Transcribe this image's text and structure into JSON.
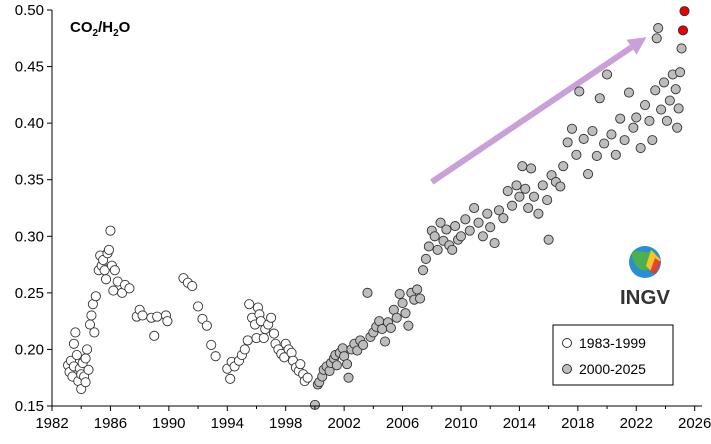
{
  "chart_data": {
    "type": "scatter",
    "title": "CO2/H2O",
    "title_parts": {
      "a": "CO",
      "a_sub": "2",
      "b": "/H",
      "b_sub": "2",
      "c": "O"
    },
    "xlabel": "",
    "ylabel": "",
    "xlim": [
      1982,
      2026.5
    ],
    "ylim": [
      0.15,
      0.5
    ],
    "x_ticks": [
      1982,
      1986,
      1990,
      1994,
      1998,
      2002,
      2006,
      2010,
      2014,
      2018,
      2022,
      2026
    ],
    "y_ticks": [
      0.15,
      0.2,
      0.25,
      0.3,
      0.35,
      0.4,
      0.45,
      0.5
    ],
    "x_tick_labels": [
      "1982",
      "1986",
      "1990",
      "1994",
      "1998",
      "2002",
      "2006",
      "2010",
      "2014",
      "2018",
      "2022",
      "2026"
    ],
    "y_tick_labels": [
      "0.15",
      "0.20",
      "0.25",
      "0.30",
      "0.35",
      "0.40",
      "0.45",
      "0.50"
    ],
    "grid": false,
    "legend_position": "bottom-right",
    "logo_text": "INGV",
    "colors": {
      "series_1983_1999": "#ffffff",
      "series_2000_2025": "#bdbdbd",
      "highlight": "#e60000",
      "arrow": "#c9a0d8",
      "marker_edge": "#333333"
    },
    "trend_arrow": {
      "from": [
        2008.0,
        0.348
      ],
      "to": [
        2022.7,
        0.476
      ]
    },
    "series": [
      {
        "name": "1983-1999",
        "marker": "open-circle",
        "points": [
          [
            1983.1,
            0.186
          ],
          [
            1983.2,
            0.18
          ],
          [
            1983.3,
            0.19
          ],
          [
            1983.4,
            0.176
          ],
          [
            1983.5,
            0.185
          ],
          [
            1983.5,
            0.205
          ],
          [
            1983.6,
            0.215
          ],
          [
            1983.7,
            0.195
          ],
          [
            1983.8,
            0.172
          ],
          [
            1983.9,
            0.183
          ],
          [
            1984.0,
            0.178
          ],
          [
            1984.0,
            0.165
          ],
          [
            1984.1,
            0.188
          ],
          [
            1984.2,
            0.176
          ],
          [
            1984.3,
            0.192
          ],
          [
            1984.3,
            0.171
          ],
          [
            1984.4,
            0.2
          ],
          [
            1984.5,
            0.182
          ],
          [
            1984.6,
            0.222
          ],
          [
            1984.7,
            0.23
          ],
          [
            1984.8,
            0.24
          ],
          [
            1984.9,
            0.215
          ],
          [
            1985.0,
            0.247
          ],
          [
            1985.2,
            0.27
          ],
          [
            1985.3,
            0.283
          ],
          [
            1985.4,
            0.274
          ],
          [
            1985.5,
            0.279
          ],
          [
            1985.6,
            0.27
          ],
          [
            1985.7,
            0.262
          ],
          [
            1985.8,
            0.285
          ],
          [
            1985.9,
            0.288
          ],
          [
            1986.0,
            0.305
          ],
          [
            1986.1,
            0.274
          ],
          [
            1986.2,
            0.252
          ],
          [
            1986.3,
            0.27
          ],
          [
            1986.5,
            0.26
          ],
          [
            1986.8,
            0.25
          ],
          [
            1987.0,
            0.257
          ],
          [
            1987.3,
            0.254
          ],
          [
            1987.8,
            0.229
          ],
          [
            1988.0,
            0.235
          ],
          [
            1988.2,
            0.23
          ],
          [
            1988.8,
            0.228
          ],
          [
            1989.0,
            0.212
          ],
          [
            1989.2,
            0.229
          ],
          [
            1989.8,
            0.23
          ],
          [
            1989.9,
            0.225
          ],
          [
            1991.0,
            0.263
          ],
          [
            1991.3,
            0.259
          ],
          [
            1991.6,
            0.256
          ],
          [
            1992.0,
            0.238
          ],
          [
            1992.3,
            0.227
          ],
          [
            1992.6,
            0.221
          ],
          [
            1992.9,
            0.204
          ],
          [
            1993.2,
            0.194
          ],
          [
            1994.0,
            0.183
          ],
          [
            1994.2,
            0.174
          ],
          [
            1994.3,
            0.189
          ],
          [
            1994.5,
            0.185
          ],
          [
            1994.8,
            0.19
          ],
          [
            1995.0,
            0.195
          ],
          [
            1995.2,
            0.2
          ],
          [
            1995.4,
            0.208
          ],
          [
            1995.5,
            0.24
          ],
          [
            1995.7,
            0.228
          ],
          [
            1995.9,
            0.222
          ],
          [
            1996.0,
            0.21
          ],
          [
            1996.1,
            0.237
          ],
          [
            1996.2,
            0.231
          ],
          [
            1996.3,
            0.225
          ],
          [
            1996.5,
            0.21
          ],
          [
            1996.6,
            0.218
          ],
          [
            1996.8,
            0.222
          ],
          [
            1997.0,
            0.228
          ],
          [
            1997.2,
            0.214
          ],
          [
            1997.3,
            0.205
          ],
          [
            1997.5,
            0.2
          ],
          [
            1997.7,
            0.196
          ],
          [
            1997.9,
            0.193
          ],
          [
            1998.0,
            0.205
          ],
          [
            1998.2,
            0.2
          ],
          [
            1998.4,
            0.197
          ],
          [
            1998.5,
            0.19
          ],
          [
            1998.7,
            0.184
          ],
          [
            1998.9,
            0.181
          ],
          [
            1999.0,
            0.187
          ],
          [
            1999.2,
            0.178
          ],
          [
            1999.3,
            0.172
          ],
          [
            1999.5,
            0.175
          ]
        ]
      },
      {
        "name": "2000-2025",
        "marker": "filled-circle",
        "points": [
          [
            2000.0,
            0.151
          ],
          [
            2000.2,
            0.169
          ],
          [
            2000.3,
            0.171
          ],
          [
            2000.5,
            0.176
          ],
          [
            2000.6,
            0.182
          ],
          [
            2000.8,
            0.185
          ],
          [
            2001.0,
            0.181
          ],
          [
            2001.1,
            0.188
          ],
          [
            2001.3,
            0.192
          ],
          [
            2001.4,
            0.195
          ],
          [
            2001.5,
            0.186
          ],
          [
            2001.7,
            0.197
          ],
          [
            2001.9,
            0.201
          ],
          [
            2002.0,
            0.194
          ],
          [
            2002.2,
            0.187
          ],
          [
            2002.3,
            0.175
          ],
          [
            2002.5,
            0.2
          ],
          [
            2002.7,
            0.205
          ],
          [
            2002.9,
            0.199
          ],
          [
            2003.1,
            0.208
          ],
          [
            2003.3,
            0.204
          ],
          [
            2003.6,
            0.25
          ],
          [
            2003.8,
            0.211
          ],
          [
            2004.0,
            0.215
          ],
          [
            2004.2,
            0.22
          ],
          [
            2004.4,
            0.225
          ],
          [
            2004.6,
            0.218
          ],
          [
            2004.8,
            0.207
          ],
          [
            2005.0,
            0.224
          ],
          [
            2005.2,
            0.219
          ],
          [
            2005.4,
            0.235
          ],
          [
            2005.6,
            0.228
          ],
          [
            2005.8,
            0.249
          ],
          [
            2006.0,
            0.241
          ],
          [
            2006.2,
            0.232
          ],
          [
            2006.4,
            0.221
          ],
          [
            2006.6,
            0.25
          ],
          [
            2006.8,
            0.244
          ],
          [
            2007.0,
            0.253
          ],
          [
            2007.2,
            0.245
          ],
          [
            2007.4,
            0.27
          ],
          [
            2007.6,
            0.28
          ],
          [
            2007.8,
            0.291
          ],
          [
            2008.0,
            0.305
          ],
          [
            2008.2,
            0.3
          ],
          [
            2008.4,
            0.288
          ],
          [
            2008.6,
            0.312
          ],
          [
            2008.8,
            0.296
          ],
          [
            2009.0,
            0.306
          ],
          [
            2009.2,
            0.292
          ],
          [
            2009.4,
            0.288
          ],
          [
            2009.6,
            0.309
          ],
          [
            2009.8,
            0.297
          ],
          [
            2010.0,
            0.3
          ],
          [
            2010.3,
            0.315
          ],
          [
            2010.6,
            0.305
          ],
          [
            2010.9,
            0.325
          ],
          [
            2011.2,
            0.312
          ],
          [
            2011.5,
            0.3
          ],
          [
            2011.8,
            0.32
          ],
          [
            2012.0,
            0.308
          ],
          [
            2012.3,
            0.294
          ],
          [
            2012.6,
            0.323
          ],
          [
            2012.9,
            0.316
          ],
          [
            2013.2,
            0.34
          ],
          [
            2013.5,
            0.327
          ],
          [
            2013.8,
            0.345
          ],
          [
            2014.0,
            0.335
          ],
          [
            2014.2,
            0.362
          ],
          [
            2014.4,
            0.342
          ],
          [
            2014.6,
            0.325
          ],
          [
            2014.8,
            0.36
          ],
          [
            2015.0,
            0.335
          ],
          [
            2015.3,
            0.32
          ],
          [
            2015.6,
            0.345
          ],
          [
            2015.9,
            0.332
          ],
          [
            2016.0,
            0.297
          ],
          [
            2016.2,
            0.354
          ],
          [
            2016.5,
            0.348
          ],
          [
            2016.8,
            0.344
          ],
          [
            2017.0,
            0.362
          ],
          [
            2017.3,
            0.383
          ],
          [
            2017.6,
            0.395
          ],
          [
            2017.9,
            0.372
          ],
          [
            2018.1,
            0.428
          ],
          [
            2018.4,
            0.386
          ],
          [
            2018.7,
            0.355
          ],
          [
            2019.0,
            0.393
          ],
          [
            2019.3,
            0.371
          ],
          [
            2019.5,
            0.422
          ],
          [
            2019.8,
            0.382
          ],
          [
            2020.0,
            0.443
          ],
          [
            2020.3,
            0.39
          ],
          [
            2020.6,
            0.372
          ],
          [
            2020.9,
            0.404
          ],
          [
            2021.2,
            0.385
          ],
          [
            2021.5,
            0.427
          ],
          [
            2021.8,
            0.396
          ],
          [
            2022.0,
            0.405
          ],
          [
            2022.3,
            0.378
          ],
          [
            2022.6,
            0.416
          ],
          [
            2022.9,
            0.402
          ],
          [
            2023.1,
            0.385
          ],
          [
            2023.3,
            0.429
          ],
          [
            2023.4,
            0.475
          ],
          [
            2023.5,
            0.484
          ],
          [
            2023.7,
            0.412
          ],
          [
            2023.9,
            0.436
          ],
          [
            2024.1,
            0.402
          ],
          [
            2024.3,
            0.42
          ],
          [
            2024.5,
            0.443
          ],
          [
            2024.7,
            0.43
          ],
          [
            2024.8,
            0.396
          ],
          [
            2024.9,
            0.413
          ],
          [
            2025.0,
            0.445
          ],
          [
            2025.1,
            0.466
          ]
        ]
      },
      {
        "name": "",
        "marker": "red-circle",
        "points": [
          [
            2025.2,
            0.482
          ],
          [
            2025.3,
            0.499
          ]
        ]
      }
    ]
  }
}
